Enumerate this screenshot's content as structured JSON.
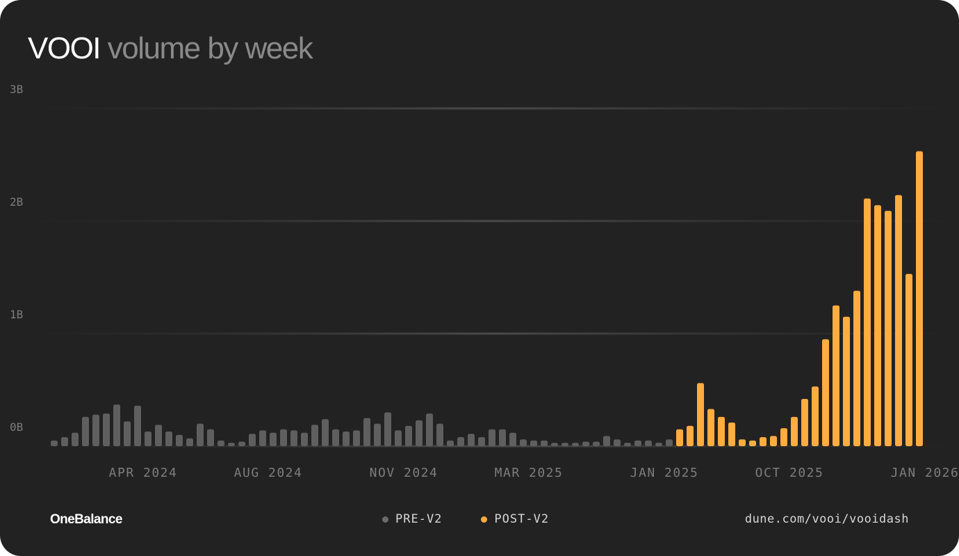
{
  "title": {
    "brand": "VOOI",
    "rest": "volume by week"
  },
  "footer": {
    "logo": "OneBalance",
    "source": "dune.com/vooi/vooidash"
  },
  "colors": {
    "background": "#222222",
    "pre": "#5f5f5f",
    "post": "#ffac40",
    "grid": "#3a3a3a"
  },
  "chart_data": {
    "type": "bar",
    "title": "VOOI volume by week",
    "ylim": [
      0,
      3000000000
    ],
    "yticks": [
      0,
      1000000000,
      2000000000,
      3000000000
    ],
    "ytick_labels": [
      "0B",
      "1B",
      "2B",
      "3B"
    ],
    "xtick_labels": [
      "APR 2024",
      "AUG 2024",
      "NOV 2024",
      "MAR 2025",
      "JAN 2025",
      "OCT 2025",
      "JAN 2026"
    ],
    "xtick_bar_index": [
      5,
      17,
      30,
      42,
      55,
      67,
      80
    ],
    "grid": true,
    "legend_position": "bottom-center",
    "series": [
      {
        "name": "PRE-V2",
        "values": [
          0.05,
          0.08,
          0.12,
          0.26,
          0.28,
          0.29,
          0.37,
          0.22,
          0.36,
          0.13,
          0.19,
          0.13,
          0.1,
          0.07,
          0.2,
          0.15,
          0.05,
          0.03,
          0.04,
          0.11,
          0.14,
          0.12,
          0.15,
          0.14,
          0.12,
          0.19,
          0.24,
          0.15,
          0.13,
          0.14,
          0.25,
          0.2,
          0.3,
          0.14,
          0.18,
          0.23,
          0.29,
          0.2,
          0.05,
          0.08,
          0.11,
          0.08,
          0.15,
          0.15,
          0.12,
          0.06,
          0.05,
          0.05,
          0.03,
          0.03,
          0.03,
          0.04,
          0.04,
          0.09,
          0.06,
          0.03,
          0.05,
          0.05,
          0.03,
          0.06
        ]
      },
      {
        "name": "POST-V2",
        "values": [
          0.15,
          0.18,
          0.56,
          0.33,
          0.26,
          0.21,
          0.06,
          0.05,
          0.08,
          0.09,
          0.16,
          0.26,
          0.42,
          0.53,
          0.95,
          1.25,
          1.15,
          1.38,
          2.2,
          2.14,
          2.09,
          2.23,
          1.53,
          2.62
        ]
      }
    ],
    "value_unit": "B"
  }
}
